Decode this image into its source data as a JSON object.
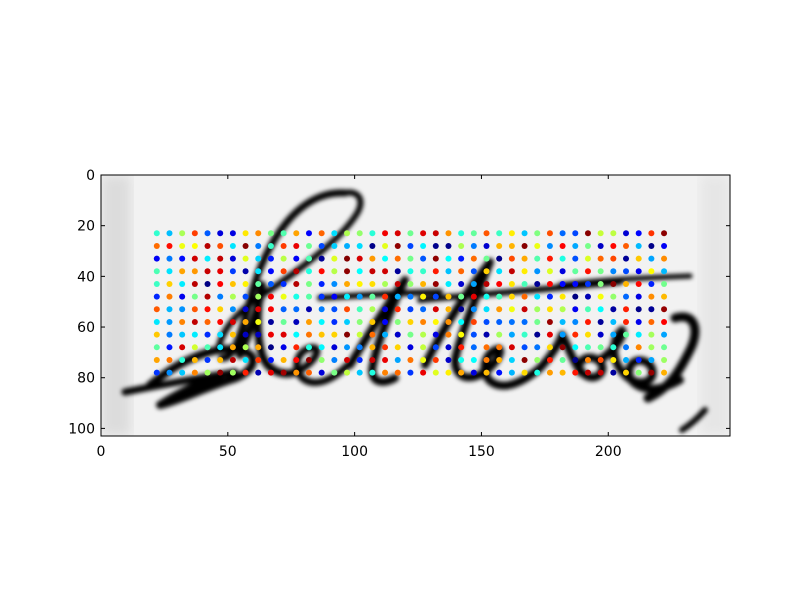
{
  "chart_data": {
    "type": "scatter",
    "title": "",
    "xlabel": "",
    "ylabel": "",
    "xlim": [
      0,
      248
    ],
    "ylim": [
      103,
      0
    ],
    "xticks": [
      0,
      50,
      100,
      150,
      200
    ],
    "yticks": [
      0,
      20,
      40,
      60,
      80,
      100
    ],
    "grid": false,
    "background_image": "handwritten word 'Letters' in black ink on grey paper",
    "handwritten_text": "Letters",
    "colormap": "jet",
    "grid_points": {
      "x_start": 22,
      "x_step": 5,
      "x_count": 41,
      "y_start": 23,
      "y_step": 5,
      "y_count": 12
    }
  }
}
